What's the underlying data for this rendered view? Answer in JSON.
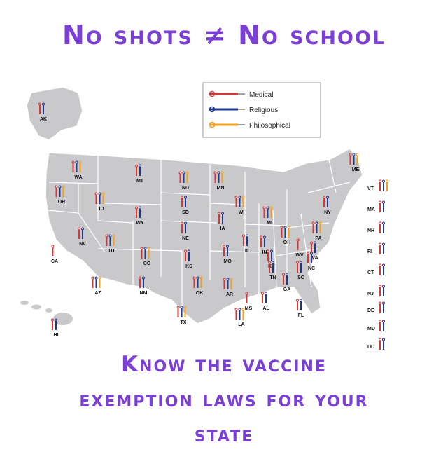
{
  "title": "No shots ≠ No school",
  "footer": [
    "Know the vaccine",
    "exemption laws for your",
    "state"
  ],
  "legend": [
    {
      "label": "Medical",
      "color": "#d23a3a"
    },
    {
      "label": "Religious",
      "color": "#1f3a8c"
    },
    {
      "label": "Philosophical",
      "color": "#f0a020"
    }
  ],
  "states": [
    {
      "abbr": "AK",
      "exemptions": [
        "medical",
        "religious"
      ]
    },
    {
      "abbr": "HI",
      "exemptions": [
        "medical",
        "religious"
      ]
    },
    {
      "abbr": "WA",
      "exemptions": [
        "medical",
        "religious",
        "philosophical"
      ]
    },
    {
      "abbr": "OR",
      "exemptions": [
        "medical",
        "religious",
        "philosophical"
      ]
    },
    {
      "abbr": "CA",
      "exemptions": [
        "medical"
      ]
    },
    {
      "abbr": "NV",
      "exemptions": [
        "medical",
        "religious"
      ]
    },
    {
      "abbr": "ID",
      "exemptions": [
        "medical",
        "religious",
        "philosophical"
      ]
    },
    {
      "abbr": "MT",
      "exemptions": [
        "medical",
        "religious"
      ]
    },
    {
      "abbr": "WY",
      "exemptions": [
        "medical",
        "religious"
      ]
    },
    {
      "abbr": "UT",
      "exemptions": [
        "medical",
        "religious",
        "philosophical"
      ]
    },
    {
      "abbr": "AZ",
      "exemptions": [
        "medical",
        "religious",
        "philosophical"
      ]
    },
    {
      "abbr": "CO",
      "exemptions": [
        "medical",
        "religious",
        "philosophical"
      ]
    },
    {
      "abbr": "NM",
      "exemptions": [
        "medical",
        "religious"
      ]
    },
    {
      "abbr": "ND",
      "exemptions": [
        "medical",
        "religious",
        "philosophical"
      ]
    },
    {
      "abbr": "SD",
      "exemptions": [
        "medical",
        "religious"
      ]
    },
    {
      "abbr": "NE",
      "exemptions": [
        "medical",
        "religious"
      ]
    },
    {
      "abbr": "KS",
      "exemptions": [
        "medical",
        "religious"
      ]
    },
    {
      "abbr": "OK",
      "exemptions": [
        "medical",
        "religious",
        "philosophical"
      ]
    },
    {
      "abbr": "TX",
      "exemptions": [
        "medical",
        "religious",
        "philosophical"
      ]
    },
    {
      "abbr": "MN",
      "exemptions": [
        "medical",
        "religious",
        "philosophical"
      ]
    },
    {
      "abbr": "IA",
      "exemptions": [
        "medical",
        "religious"
      ]
    },
    {
      "abbr": "MO",
      "exemptions": [
        "medical",
        "religious"
      ]
    },
    {
      "abbr": "AR",
      "exemptions": [
        "medical",
        "religious",
        "philosophical"
      ]
    },
    {
      "abbr": "LA",
      "exemptions": [
        "medical",
        "religious",
        "philosophical"
      ]
    },
    {
      "abbr": "WI",
      "exemptions": [
        "medical",
        "religious",
        "philosophical"
      ]
    },
    {
      "abbr": "IL",
      "exemptions": [
        "medical",
        "religious"
      ]
    },
    {
      "abbr": "MS",
      "exemptions": [
        "medical"
      ]
    },
    {
      "abbr": "MI",
      "exemptions": [
        "medical",
        "religious",
        "philosophical"
      ]
    },
    {
      "abbr": "IN",
      "exemptions": [
        "medical",
        "religious"
      ]
    },
    {
      "abbr": "KY",
      "exemptions": [
        "medical",
        "religious"
      ]
    },
    {
      "abbr": "TN",
      "exemptions": [
        "medical",
        "religious"
      ]
    },
    {
      "abbr": "AL",
      "exemptions": [
        "medical",
        "religious"
      ]
    },
    {
      "abbr": "OH",
      "exemptions": [
        "medical",
        "religious",
        "philosophical"
      ]
    },
    {
      "abbr": "GA",
      "exemptions": [
        "medical",
        "religious"
      ]
    },
    {
      "abbr": "FL",
      "exemptions": [
        "medical",
        "religious"
      ]
    },
    {
      "abbr": "SC",
      "exemptions": [
        "medical",
        "religious"
      ]
    },
    {
      "abbr": "NC",
      "exemptions": [
        "medical",
        "religious"
      ]
    },
    {
      "abbr": "VA",
      "exemptions": [
        "medical",
        "religious"
      ]
    },
    {
      "abbr": "WV",
      "exemptions": [
        "medical"
      ]
    },
    {
      "abbr": "PA",
      "exemptions": [
        "medical",
        "religious",
        "philosophical"
      ]
    },
    {
      "abbr": "NY",
      "exemptions": [
        "medical",
        "religious"
      ]
    },
    {
      "abbr": "ME",
      "exemptions": [
        "medical",
        "religious",
        "philosophical"
      ]
    },
    {
      "abbr": "VT",
      "exemptions": [
        "medical",
        "religious",
        "philosophical"
      ]
    },
    {
      "abbr": "MA",
      "exemptions": [
        "medical",
        "religious"
      ]
    },
    {
      "abbr": "NH",
      "exemptions": [
        "medical",
        "religious"
      ]
    },
    {
      "abbr": "RI",
      "exemptions": [
        "medical",
        "religious"
      ]
    },
    {
      "abbr": "CT",
      "exemptions": [
        "medical",
        "religious"
      ]
    },
    {
      "abbr": "NJ",
      "exemptions": [
        "medical",
        "religious"
      ]
    },
    {
      "abbr": "DE",
      "exemptions": [
        "medical",
        "religious"
      ]
    },
    {
      "abbr": "MD",
      "exemptions": [
        "medical",
        "religious"
      ]
    },
    {
      "abbr": "DC",
      "exemptions": [
        "medical",
        "religious"
      ]
    }
  ]
}
